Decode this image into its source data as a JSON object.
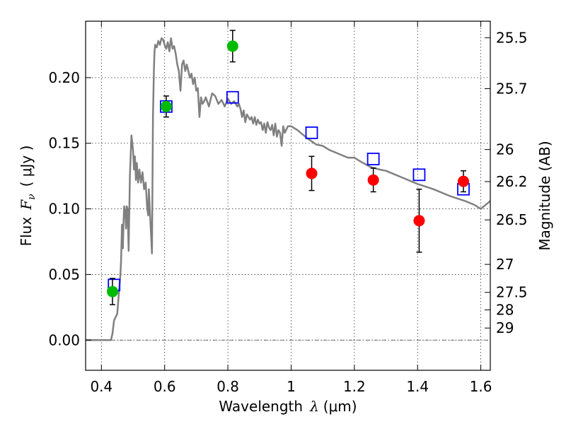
{
  "chart_data": {
    "type": "scatter",
    "title": "",
    "xlabel": {
      "prefix": "Wavelength",
      "symbol": "λ",
      "unit": "(μm)"
    },
    "ylabel": {
      "prefix": "Flux",
      "symbol": "F",
      "subscript": "ν",
      "unit": "( μJy )"
    },
    "y2label": "Magnitude (AB)",
    "xlim": [
      0.35,
      1.63
    ],
    "ylim": [
      -0.023,
      0.243
    ],
    "grid": true,
    "x_ticks": [
      {
        "value": 0.4,
        "label": "0.4"
      },
      {
        "value": 0.6,
        "label": "0.6"
      },
      {
        "value": 0.8,
        "label": "0.8"
      },
      {
        "value": 1.0,
        "label": "1"
      },
      {
        "value": 1.2,
        "label": "1.2"
      },
      {
        "value": 1.4,
        "label": "1.4"
      },
      {
        "value": 1.6,
        "label": "1.6"
      }
    ],
    "y_ticks": [
      {
        "value": 0.0,
        "label": "0.00"
      },
      {
        "value": 0.05,
        "label": "0.05"
      },
      {
        "value": 0.1,
        "label": "0.10"
      },
      {
        "value": 0.15,
        "label": "0.15"
      },
      {
        "value": 0.2,
        "label": "0.20"
      }
    ],
    "magnitude_ticks": [
      {
        "flux": 0.2304,
        "label": "25.5"
      },
      {
        "flux": 0.1916,
        "label": "25.7"
      },
      {
        "flux": 0.1452,
        "label": "26"
      },
      {
        "flux": 0.1208,
        "label": "26.2"
      },
      {
        "flux": 0.0916,
        "label": "26.5"
      },
      {
        "flux": 0.0577,
        "label": "27"
      },
      {
        "flux": 0.0364,
        "label": "27.5"
      },
      {
        "flux": 0.023,
        "label": "28"
      },
      {
        "flux": 0.0092,
        "label": "29"
      }
    ],
    "series": [
      {
        "type": "line",
        "color": "#808080",
        "x": [
          0.35,
          0.43,
          0.435,
          0.44,
          0.45,
          0.455,
          0.46,
          0.462,
          0.465,
          0.468,
          0.47,
          0.472,
          0.475,
          0.478,
          0.48,
          0.483,
          0.486,
          0.49,
          0.495,
          0.5,
          0.503,
          0.506,
          0.509,
          0.512,
          0.516,
          0.52,
          0.525,
          0.53,
          0.535,
          0.54,
          0.545,
          0.548,
          0.55,
          0.552,
          0.555,
          0.558,
          0.56,
          0.563,
          0.566,
          0.568,
          0.57,
          0.575,
          0.58,
          0.585,
          0.59,
          0.595,
          0.6,
          0.605,
          0.61,
          0.615,
          0.62,
          0.625,
          0.63,
          0.635,
          0.64,
          0.645,
          0.65,
          0.655,
          0.66,
          0.665,
          0.67,
          0.675,
          0.68,
          0.685,
          0.69,
          0.695,
          0.7,
          0.705,
          0.71,
          0.715,
          0.72,
          0.725,
          0.73,
          0.74,
          0.75,
          0.76,
          0.77,
          0.78,
          0.79,
          0.8,
          0.81,
          0.82,
          0.83,
          0.835,
          0.84,
          0.845,
          0.85,
          0.855,
          0.86,
          0.865,
          0.87,
          0.875,
          0.88,
          0.885,
          0.89,
          0.895,
          0.9,
          0.905,
          0.91,
          0.915,
          0.92,
          0.925,
          0.93,
          0.935,
          0.94,
          0.945,
          0.95,
          0.955,
          0.96,
          0.965,
          0.97,
          0.975,
          0.98,
          0.99,
          1.0,
          1.02,
          1.05,
          1.08,
          1.1,
          1.12,
          1.15,
          1.18,
          1.2,
          1.22,
          1.25,
          1.28,
          1.3,
          1.35,
          1.4,
          1.45,
          1.5,
          1.55,
          1.58,
          1.6,
          1.63
        ],
        "y": [
          0.0,
          0.0,
          0.005,
          0.015,
          0.02,
          0.035,
          0.05,
          0.06,
          0.088,
          0.07,
          0.09,
          0.102,
          0.098,
          0.085,
          0.102,
          0.1,
          0.068,
          0.125,
          0.156,
          0.145,
          0.13,
          0.14,
          0.122,
          0.135,
          0.12,
          0.13,
          0.12,
          0.128,
          0.115,
          0.12,
          0.1,
          0.095,
          0.115,
          0.105,
          0.09,
          0.075,
          0.066,
          0.17,
          0.205,
          0.22,
          0.225,
          0.223,
          0.228,
          0.225,
          0.23,
          0.229,
          0.225,
          0.222,
          0.227,
          0.22,
          0.23,
          0.222,
          0.224,
          0.218,
          0.21,
          0.205,
          0.19,
          0.21,
          0.213,
          0.205,
          0.21,
          0.205,
          0.2,
          0.203,
          0.195,
          0.2,
          0.19,
          0.192,
          0.17,
          0.185,
          0.18,
          0.182,
          0.185,
          0.178,
          0.188,
          0.186,
          0.18,
          0.183,
          0.178,
          0.184,
          0.18,
          0.182,
          0.178,
          0.18,
          0.176,
          0.17,
          0.175,
          0.166,
          0.172,
          0.17,
          0.168,
          0.17,
          0.165,
          0.17,
          0.164,
          0.168,
          0.165,
          0.166,
          0.16,
          0.165,
          0.158,
          0.166,
          0.162,
          0.16,
          0.164,
          0.156,
          0.165,
          0.155,
          0.16,
          0.158,
          0.148,
          0.163,
          0.158,
          0.163,
          0.163,
          0.16,
          0.154,
          0.149,
          0.148,
          0.145,
          0.142,
          0.139,
          0.139,
          0.136,
          0.132,
          0.13,
          0.129,
          0.124,
          0.119,
          0.115,
          0.11,
          0.106,
          0.103,
          0.1,
          0.106
        ]
      },
      {
        "type": "open-squares",
        "color": "#0000ff",
        "x": [
          0.44,
          0.605,
          0.815,
          1.065,
          1.26,
          1.405,
          1.545
        ],
        "y": [
          0.042,
          0.178,
          0.185,
          0.158,
          0.138,
          0.126,
          0.115
        ]
      },
      {
        "type": "points-errorbars",
        "color": "#00bb00",
        "x": [
          0.435,
          0.605,
          0.815
        ],
        "y": [
          0.037,
          0.178,
          0.224
        ],
        "yerr": [
          0.01,
          0.008,
          0.012
        ]
      },
      {
        "type": "points-errorbars",
        "color": "#ff0000",
        "x": [
          1.065,
          1.26,
          1.405,
          1.545
        ],
        "y": [
          0.127,
          0.122,
          0.091,
          0.121
        ],
        "yerr": [
          0.013,
          0.009,
          0.024,
          0.008
        ]
      }
    ]
  }
}
